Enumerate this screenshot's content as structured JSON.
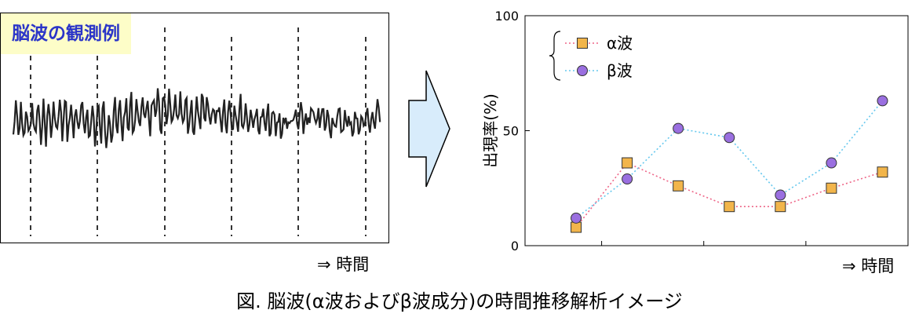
{
  "left_panel": {
    "title": "脳波の観測例",
    "time_label": "⇒ 時間"
  },
  "chart_data": {
    "type": "line",
    "x": [
      1,
      2,
      3,
      4,
      5,
      6,
      7
    ],
    "series": [
      {
        "name": "α波",
        "values": [
          8,
          36,
          26,
          17,
          17,
          25,
          32
        ],
        "color": "#f2b54b",
        "line_color": "#ee6688",
        "marker": "square"
      },
      {
        "name": "β波",
        "values": [
          12,
          29,
          51,
          47,
          22,
          36,
          63
        ],
        "color": "#9a6fe0",
        "line_color": "#66c8ee",
        "marker": "circle"
      }
    ],
    "ylabel": "出現率(%)",
    "ylim": [
      0,
      100
    ],
    "yticks": [
      0,
      50,
      100
    ],
    "xlabel": "⇒ 時間",
    "grid": false,
    "legend_position": "top-left"
  },
  "caption": "図. 脳波(α波およびβ波成分)の時間推移解析イメージ"
}
